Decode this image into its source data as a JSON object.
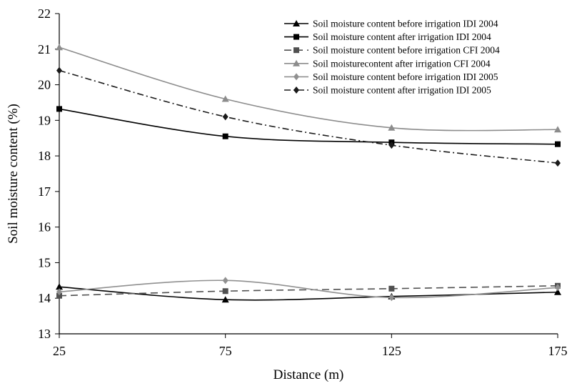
{
  "chart_data": {
    "type": "line",
    "xlabel": "Distance (m)",
    "ylabel": "Soil moisture content  (%)",
    "x": [
      25,
      75,
      125,
      175
    ],
    "xlim": [
      25,
      175
    ],
    "ylim": [
      13,
      22
    ],
    "yticks": [
      13,
      14,
      15,
      16,
      17,
      18,
      19,
      20,
      21,
      22
    ],
    "grid": false,
    "legend_position": "top-right",
    "series": [
      {
        "name": "Soil moisture content before irrigation IDI 2004",
        "values": [
          14.32,
          13.96,
          14.05,
          14.17
        ],
        "color": "#000000",
        "marker": "triangle",
        "dash": "solid"
      },
      {
        "name": "Soil moisture content after irrigation IDI 2004",
        "values": [
          19.32,
          18.55,
          18.38,
          18.33
        ],
        "color": "#000000",
        "marker": "square",
        "dash": "solid"
      },
      {
        "name": "Soil moisture content before irrigation CFI 2004",
        "values": [
          14.07,
          14.2,
          14.27,
          14.35
        ],
        "color": "#505050",
        "marker": "square",
        "dash": "dashed"
      },
      {
        "name": "Soil moisturecontent after irrigation CFI 2004",
        "values": [
          21.05,
          19.6,
          18.79,
          18.74
        ],
        "color": "#8c8c8c",
        "marker": "triangle",
        "dash": "solid"
      },
      {
        "name": "Soil moisture content before irrigation IDI 2005",
        "values": [
          14.18,
          14.5,
          14.02,
          14.3
        ],
        "color": "#909090",
        "marker": "diamond",
        "dash": "solid"
      },
      {
        "name": "Soil moisture content after irrigation IDI 2005",
        "values": [
          20.4,
          19.1,
          18.3,
          17.8
        ],
        "color": "#1a1a1a",
        "marker": "diamond",
        "dash": "dashdot"
      }
    ]
  }
}
